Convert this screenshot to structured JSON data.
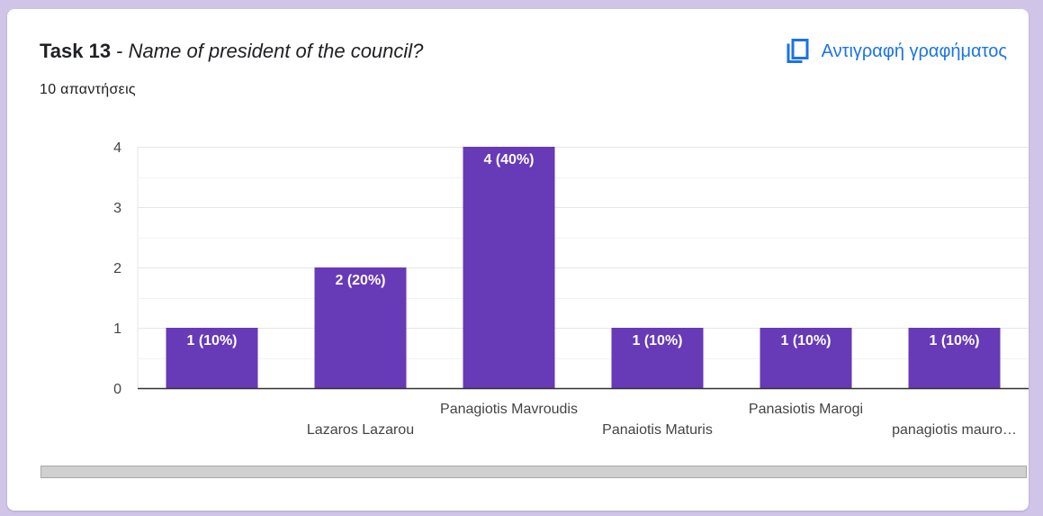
{
  "header": {
    "task_label": "Task 13",
    "separator": " - ",
    "question": "Name of president of the council?",
    "response_count": "10 απαντήσεις",
    "copy_chart_label": "Αντιγραφή γραφήματος",
    "copy_icon": "copy-icon"
  },
  "colors": {
    "bar": "#673ab7",
    "accent": "#1a73e8",
    "background": "#d1c4e9"
  },
  "chart_data": {
    "type": "bar",
    "categories": [
      "",
      "Lazaros Lazarou",
      "Panagiotis Mavroudis",
      "Panaiotis Maturis",
      "Panasiotis Marogi",
      "panagiotis mauro…"
    ],
    "values": [
      1,
      2,
      4,
      1,
      1,
      1
    ],
    "data_labels": [
      "1 (10%)",
      "2 (20%)",
      "4 (40%)",
      "1 (10%)",
      "1 (10%)",
      "1 (10%)"
    ],
    "yticks": [
      "0",
      "1",
      "2",
      "3",
      "4"
    ],
    "ylim": [
      0,
      4
    ],
    "grid": true,
    "xlabel": "",
    "ylabel": ""
  }
}
